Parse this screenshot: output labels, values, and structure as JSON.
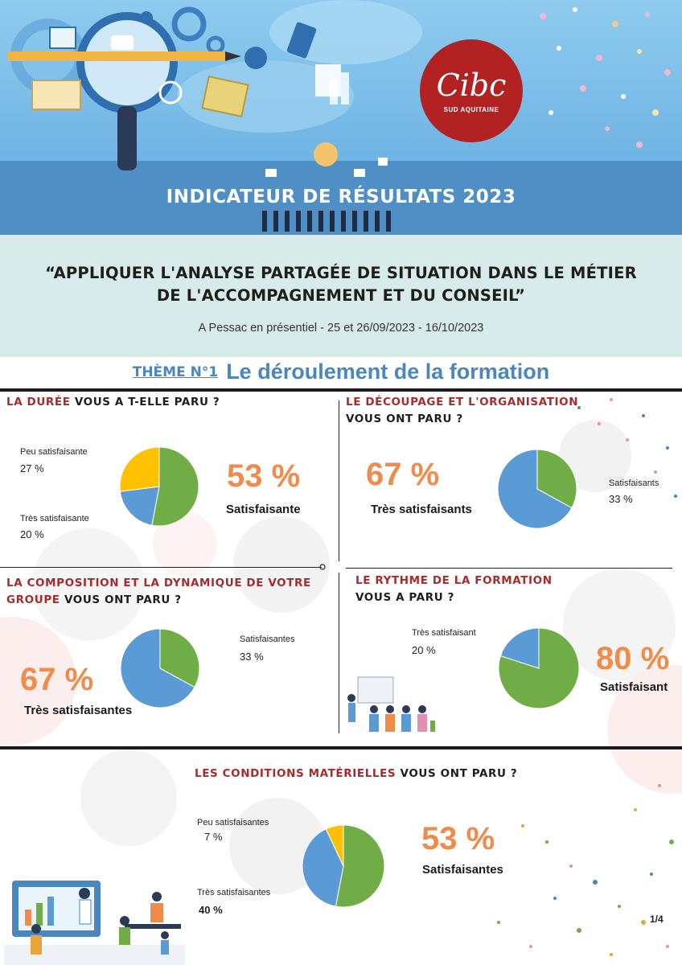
{
  "header": {
    "title": "INDICATEUR DE RÉSULTATS 2023",
    "logo_text": "Cibc",
    "logo_subtext": "SUD AQUITAINE"
  },
  "course": {
    "title_line1": "“APPLIQUER L'ANALYSE PARTAGÉE DE SITUATION DANS LE MÉTIER",
    "title_line2": "DE L'ACCOMPAGNEMENT ET DU CONSEIL”",
    "place_dates": "A Pessac en présentiel -  25 et 26/09/2023 - 16/10/2023"
  },
  "theme": {
    "number": "THÈME N°1",
    "title": "Le déroulement de la formation"
  },
  "colors": {
    "green": "#70ad47",
    "blue": "#5b9bd5",
    "yellow": "#ffc000",
    "accent_orange": "#f08c4a",
    "heading_red": "#a82a2a",
    "theme_blue": "#4a86c0"
  },
  "chart_data": [
    {
      "type": "pie",
      "title_red": "LA DURÉE",
      "title_rest": " VOUS A T-ELLE PARU ?",
      "slices": [
        {
          "label": "Satisfaisante",
          "value": 53,
          "color": "#70ad47"
        },
        {
          "label": "Très satisfaisante",
          "value": 20,
          "color": "#5b9bd5"
        },
        {
          "label": "Peu satisfaisante",
          "value": 27,
          "color": "#ffc000"
        }
      ],
      "texts": {
        "peu_label": "Peu satisfaisante",
        "peu_value": "27 %",
        "tres_label": "Très satisfaisante",
        "tres_value": "20 %",
        "main_value": "53 %",
        "main_label": "Satisfaisante"
      }
    },
    {
      "type": "pie",
      "title_red": "LE DÉCOUPAGE ET L'ORGANISATION",
      "title_rest": "VOUS ONT PARU ?",
      "slices": [
        {
          "label": "Satisfaisants",
          "value": 33,
          "color": "#70ad47"
        },
        {
          "label": "Très satisfaisants",
          "value": 67,
          "color": "#5b9bd5"
        }
      ],
      "texts": {
        "main_value": "67 %",
        "main_label": "Très satisfaisants",
        "side_label": "Satisfaisants",
        "side_value": "33 %"
      }
    },
    {
      "type": "pie",
      "title_red_line1": "LA COMPOSITION ET LA DYNAMIQUE DE VOTRE",
      "title_red_line2": "GROUPE",
      "title_rest": " VOUS ONT PARU ?",
      "slices": [
        {
          "label": "Satisfaisantes",
          "value": 33,
          "color": "#70ad47"
        },
        {
          "label": "Très satisfaisantes",
          "value": 67,
          "color": "#5b9bd5"
        }
      ],
      "texts": {
        "side_label": "Satisfaisantes",
        "side_value": "33 %",
        "main_value": "67 %",
        "main_label": "Très satisfaisantes"
      }
    },
    {
      "type": "pie",
      "title_red": "LE RYTHME DE LA FORMATION",
      "title_rest": "VOUS A PARU ?",
      "slices": [
        {
          "label": "Satisfaisant",
          "value": 80,
          "color": "#70ad47"
        },
        {
          "label": "Très satisfaisant",
          "value": 20,
          "color": "#5b9bd5"
        }
      ],
      "texts": {
        "side_label": "Très satisfaisant",
        "side_value": "20 %",
        "main_value": "80 %",
        "main_label": "Satisfaisant"
      }
    },
    {
      "type": "pie",
      "title_red": "LES CONDITIONS MATÉRIELLES",
      "title_rest": " VOUS ONT PARU ?",
      "slices": [
        {
          "label": "Satisfaisantes",
          "value": 53,
          "color": "#70ad47"
        },
        {
          "label": "Très satisfaisantes",
          "value": 40,
          "color": "#5b9bd5"
        },
        {
          "label": "Peu satisfaisantes",
          "value": 7,
          "color": "#ffc000"
        }
      ],
      "texts": {
        "peu_label": "Peu satisfaisantes",
        "peu_value": "7 %",
        "tres_label": "Très satisfaisantes",
        "tres_value": "40 %",
        "main_value": "53 %",
        "main_label": "Satisfaisantes"
      }
    }
  ],
  "page": "1/4"
}
